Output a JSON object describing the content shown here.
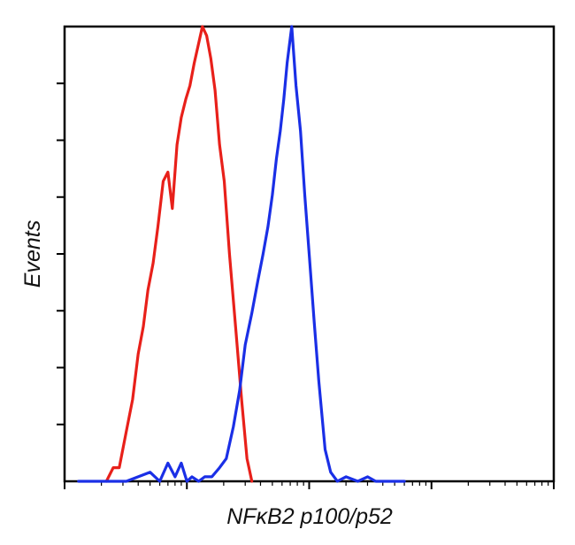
{
  "chart_data": {
    "type": "line",
    "title": "",
    "xlabel": "NFκB2 p100/p52",
    "ylabel": "Events",
    "x_scale": "log",
    "xlim": [
      1,
      10000
    ],
    "ylim": [
      0,
      100
    ],
    "grid": false,
    "legend": "none",
    "x_tick_labels": [],
    "y_tick_labels": [],
    "series": [
      {
        "color": "#e8201a",
        "x": [
          2.2,
          2.5,
          2.8,
          3.2,
          3.6,
          4.0,
          4.4,
          4.8,
          5.3,
          5.8,
          6.4,
          7.0,
          7.6,
          8.3,
          9.0,
          9.8,
          10.6,
          11.5,
          12.4,
          13.4,
          14.5,
          15.7,
          17.0,
          18.5,
          20.2,
          22.3,
          25.0,
          28.0,
          31.0,
          34.0
        ],
        "y": [
          0,
          3,
          3,
          11,
          18,
          28,
          34,
          42,
          48,
          56,
          66,
          68,
          60,
          74,
          80,
          84,
          87,
          92,
          96,
          100,
          98,
          93,
          86,
          74,
          66,
          50,
          34,
          18,
          5,
          0
        ]
      },
      {
        "color": "#1a2fe6",
        "x": [
          1.3,
          3.2,
          4.0,
          5.0,
          6.0,
          7.0,
          8.0,
          9.0,
          10.0,
          11.0,
          12.5,
          14.0,
          16.0,
          18.5,
          21.0,
          24.0,
          27.0,
          30.0,
          34.0,
          38.0,
          42.0,
          46.0,
          50.0,
          54.0,
          58.0,
          62.0,
          66.0,
          72.0,
          78.0,
          85.0,
          92.0,
          100.0,
          110.0,
          120.0,
          135.0,
          150.0,
          170.0,
          200.0,
          250.0,
          300.0,
          350.0,
          400.0,
          600.0
        ],
        "y": [
          0,
          0,
          1,
          2,
          0,
          4,
          1,
          4,
          0,
          1,
          0,
          1,
          1,
          3,
          5,
          12,
          20,
          30,
          37,
          44,
          50,
          56,
          63,
          71,
          77,
          84,
          92,
          100,
          87,
          77,
          63,
          50,
          35,
          22,
          7,
          2,
          0,
          1,
          0,
          1,
          0,
          0,
          0
        ]
      }
    ]
  }
}
